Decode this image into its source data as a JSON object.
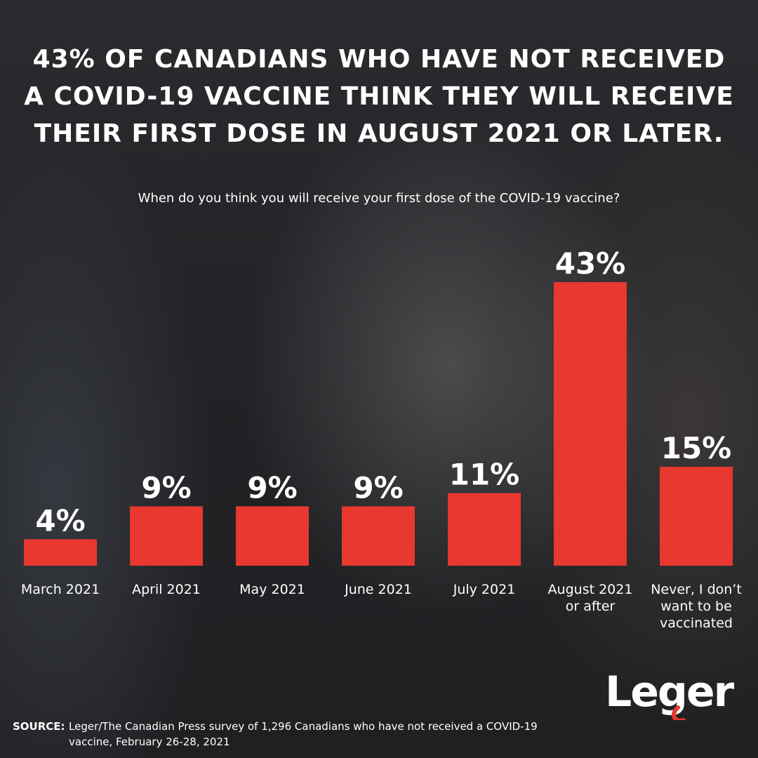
{
  "headline": "43% of Canadians who have not received a COVID-19 vaccine think they will receive their first dose in August 2021 or later.",
  "question": "When do you think you will receive your first dose of the COVID-19 vaccine?",
  "source_label": "SOURCE:",
  "source_text": "Leger/The Canadian Press survey of 1,296 Canadians who have not received a COVID-19 vaccine, February 26-28, 2021",
  "logo_text": "Leger",
  "colors": {
    "bar": "#e8382f",
    "text": "#ffffff",
    "logo_accent": "#e8382f"
  },
  "chart_data": {
    "type": "bar",
    "title": "When do you think you will receive your first dose of the COVID-19 vaccine?",
    "categories": [
      [
        "March 2021"
      ],
      [
        "April 2021"
      ],
      [
        "May 2021"
      ],
      [
        "June 2021"
      ],
      [
        "July 2021"
      ],
      [
        "August 2021",
        "or after"
      ],
      [
        "Never, I don’t",
        "want to be",
        "vaccinated"
      ]
    ],
    "values": [
      4,
      9,
      9,
      9,
      11,
      43,
      15
    ],
    "value_labels": [
      "4%",
      "9%",
      "9%",
      "9%",
      "11%",
      "43%",
      "15%"
    ],
    "unit": "%",
    "ylim": [
      0,
      43
    ],
    "grid": false,
    "legend": "none"
  }
}
